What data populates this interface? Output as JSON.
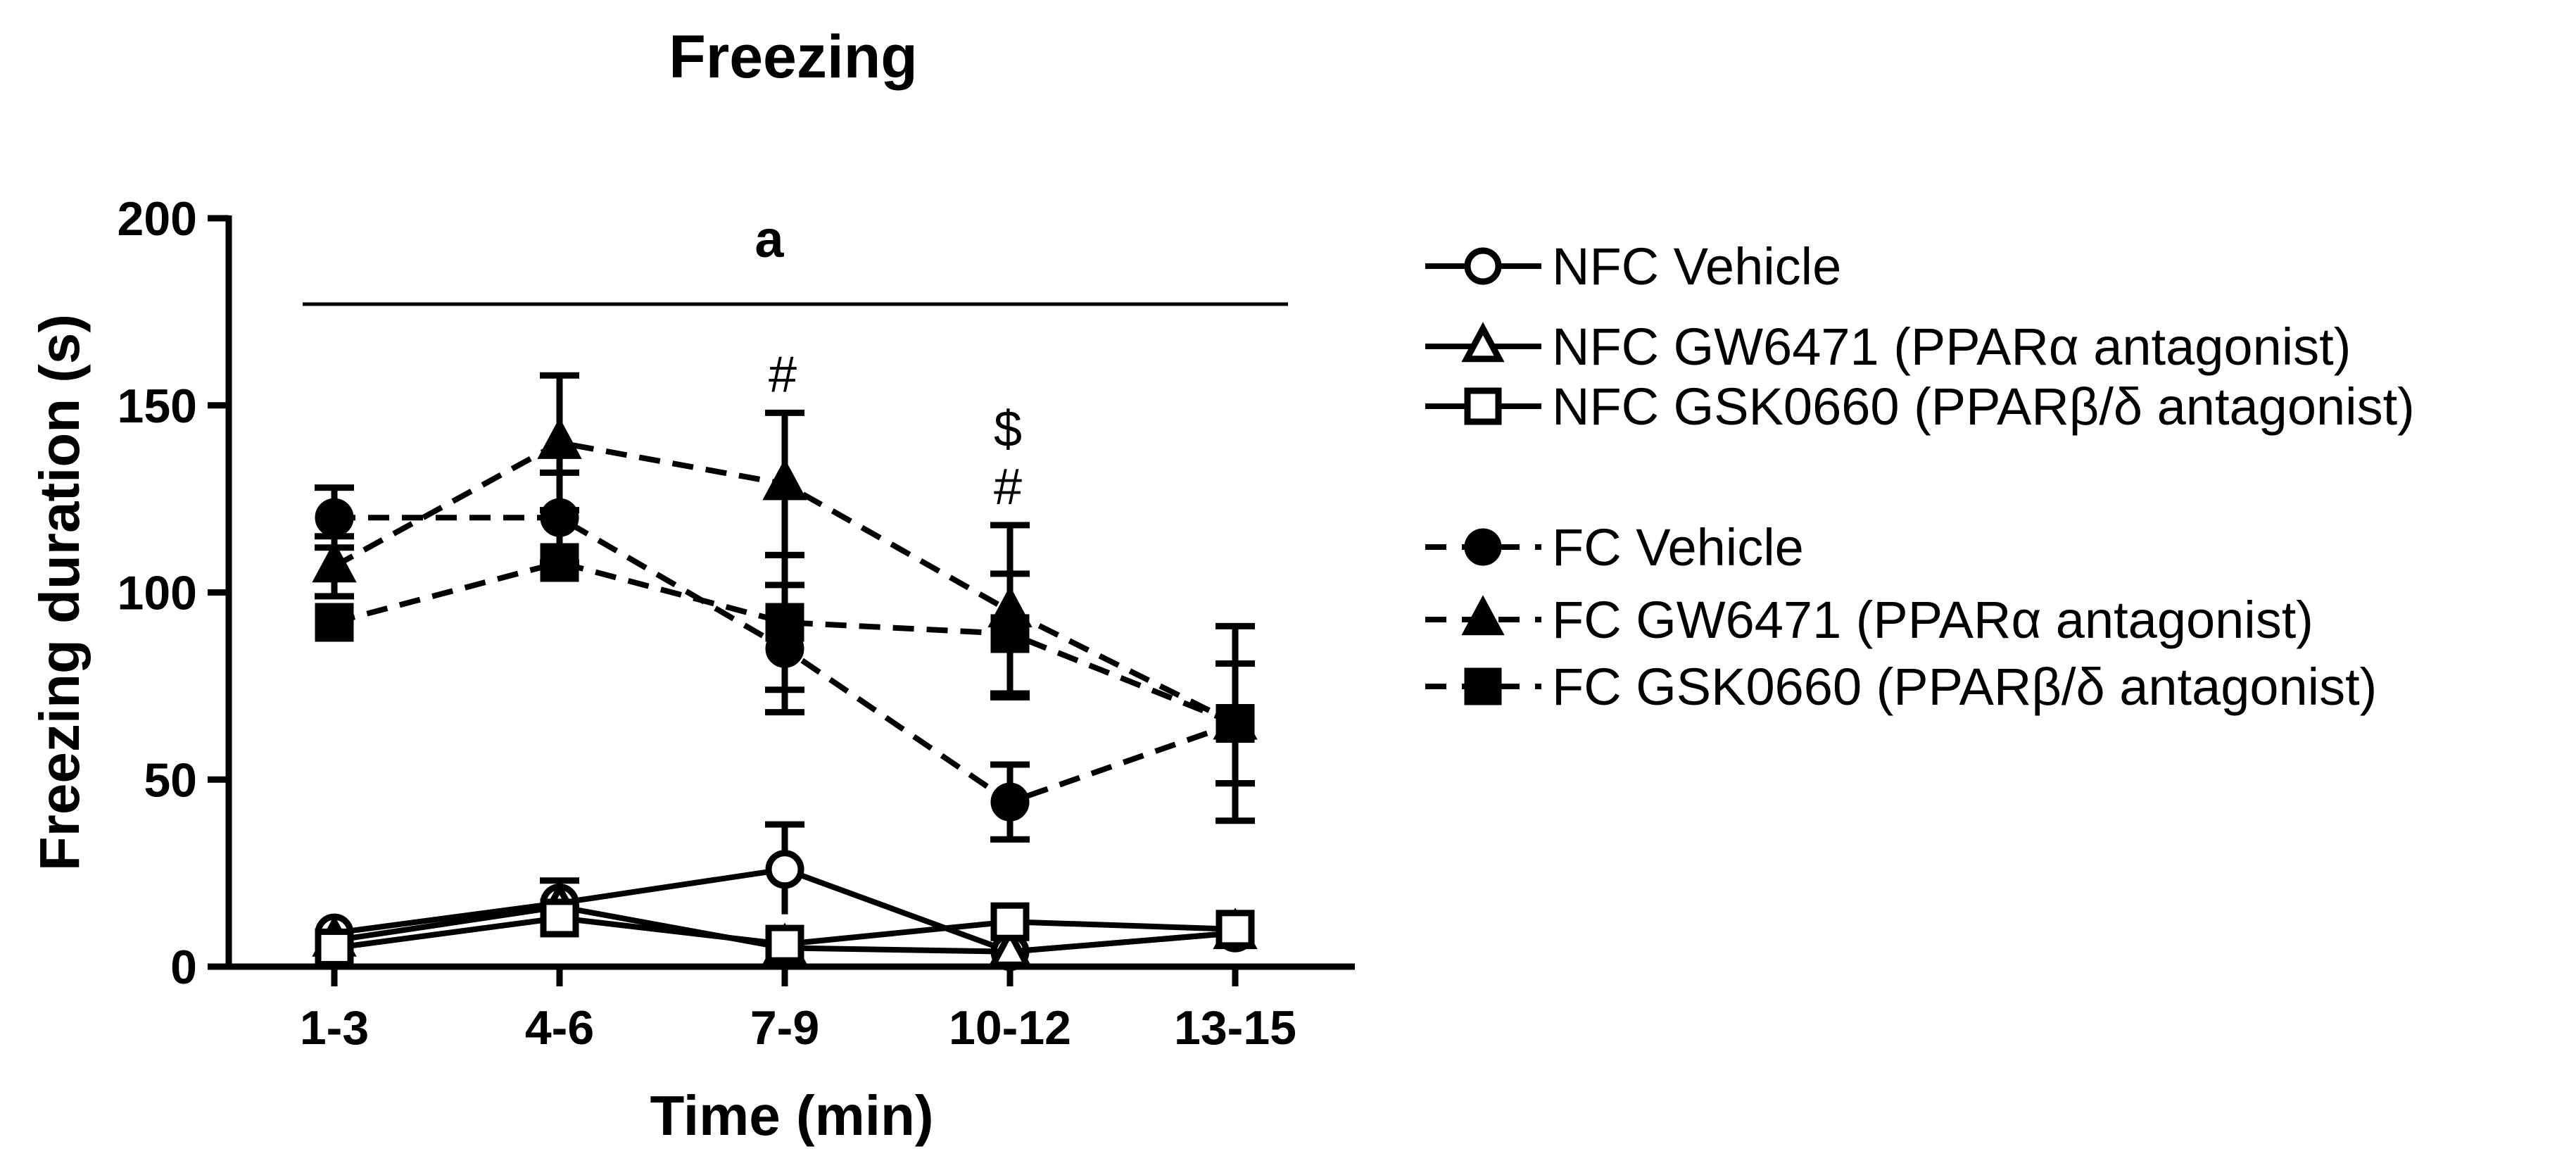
{
  "chart_data": {
    "type": "line",
    "title": "Freezing",
    "xlabel": "Time (min)",
    "ylabel": "Freezing duration (s)",
    "categories": [
      "1-3",
      "4-6",
      "7-9",
      "10-12",
      "13-15"
    ],
    "ylim": [
      0,
      200
    ],
    "yticks": [
      0,
      50,
      100,
      150,
      200
    ],
    "grid": false,
    "legend_position": "right",
    "series": [
      {
        "name": "NFC Vehicle",
        "marker": "circle-open",
        "dashed": false,
        "values": [
          9,
          17,
          26,
          4,
          9
        ],
        "errors": [
          0,
          6,
          12,
          0,
          0
        ]
      },
      {
        "name": "NFC GW6471 (PPARα antagonist)",
        "marker": "triangle-open",
        "dashed": false,
        "values": [
          7,
          16,
          5,
          4,
          9
        ],
        "errors": [
          0,
          0,
          0,
          0,
          0
        ]
      },
      {
        "name": "NFC GSK0660 (PPARβ/δ antagonist)",
        "marker": "square-open",
        "dashed": false,
        "values": [
          5,
          13,
          6,
          12,
          10
        ],
        "errors": [
          0,
          3,
          0,
          0,
          0
        ]
      },
      {
        "name": "FC Vehicle",
        "marker": "circle-filled",
        "dashed": true,
        "values": [
          120,
          120,
          85,
          44,
          65
        ],
        "errors": [
          8,
          12,
          17,
          10,
          16
        ]
      },
      {
        "name": "FC GW6471 (PPARα antagonist)",
        "marker": "triangle-filled",
        "dashed": true,
        "values": [
          107,
          140,
          129,
          95,
          65
        ],
        "errors": [
          8,
          18,
          19,
          23,
          16
        ]
      },
      {
        "name": "FC GSK0660 (PPARβ/δ antagonist)",
        "marker": "square-filled",
        "dashed": true,
        "values": [
          92,
          108,
          92,
          89,
          65
        ],
        "errors": [
          0,
          0,
          18,
          16,
          26
        ]
      }
    ],
    "annotations": {
      "bracket_label": "a",
      "hash_label": "#",
      "dollar_label": "$",
      "hash_at": [
        "7-9",
        "10-12"
      ],
      "dollar_at": [
        "10-12"
      ]
    }
  }
}
